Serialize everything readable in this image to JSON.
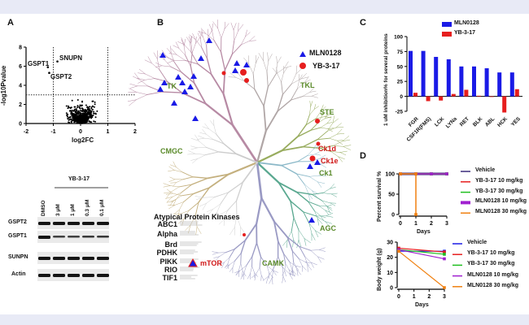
{
  "panels": {
    "a": "A",
    "b": "B",
    "c": "C",
    "d": "D"
  },
  "colors": {
    "mln": "#1a1ae6",
    "yb": "#e61e1e",
    "family_label": "#5a8a2a",
    "highlight": "#d01818",
    "band": "#e8eaf6"
  },
  "chart_data": [
    {
      "type": "scatter",
      "panel": "A",
      "xlabel": "log2FC",
      "ylabel": "-log10Pvalue",
      "xlim": [
        -2,
        2
      ],
      "ylim": [
        0,
        8
      ],
      "xticks": [
        "-2",
        "-1",
        "0",
        "1",
        "2"
      ],
      "yticks": [
        "0",
        "2",
        "4",
        "6",
        "8"
      ],
      "thresholds": {
        "x": [
          -1,
          1
        ],
        "y": 3
      },
      "labeled_points": [
        {
          "name": "GSPT1",
          "x": -1.2,
          "y": 5.9
        },
        {
          "name": "GSPT2",
          "x": -1.15,
          "y": 5.3
        },
        {
          "name": "SNUPN",
          "x": -0.85,
          "y": 6.5
        }
      ]
    },
    {
      "type": "bar",
      "panel": "C",
      "ylabel": "1 uM inhibition% for several proteins",
      "ylim": [
        -25,
        100
      ],
      "yticks": [
        "-25",
        "0",
        "25",
        "50",
        "75",
        "100"
      ],
      "categories": [
        "FGR",
        "CSF1R(FMS)",
        "LCK",
        "LYNa",
        "RET",
        "BLK",
        "ABL",
        "HCK",
        "YES"
      ],
      "series": [
        {
          "name": "MLN0128",
          "color": "#1a1ae6",
          "values": [
            76,
            76,
            66,
            62,
            50,
            50,
            47,
            40,
            40
          ]
        },
        {
          "name": "YB-3-17",
          "color": "#e61e1e",
          "values": [
            6,
            -8,
            -7,
            4,
            11,
            1,
            -1,
            -27,
            12
          ]
        }
      ],
      "legend": "top-right"
    },
    {
      "type": "line",
      "panel": "D-top",
      "ylabel": "Percent survival %",
      "xlabel": "Days",
      "xlim": [
        0,
        3
      ],
      "ylim": [
        0,
        100
      ],
      "xticks": [
        "0",
        "1",
        "2",
        "3"
      ],
      "yticks": [
        "0",
        "50",
        "100"
      ],
      "series": [
        {
          "name": "Vehicle",
          "color": "#3a2a7a",
          "x": [
            0,
            1,
            2,
            3
          ],
          "y": [
            100,
            100,
            100,
            100
          ]
        },
        {
          "name": "YB-3-17 10 mg/kg",
          "color": "#e61e1e",
          "x": [
            0,
            1,
            2,
            3
          ],
          "y": [
            100,
            100,
            100,
            100
          ]
        },
        {
          "name": "YB-3-17 30 mg/kg",
          "color": "#1fbf1f",
          "x": [
            0,
            1,
            2,
            3
          ],
          "y": [
            100,
            100,
            100,
            100
          ]
        },
        {
          "name": "MLN0128 10 mg/kg",
          "color": "#a020d0",
          "x": [
            0,
            1,
            2,
            3
          ],
          "y": [
            100,
            100,
            100,
            100
          ]
        },
        {
          "name": "MLN0128 30 mg/kg",
          "color": "#f08010",
          "x": [
            0,
            1,
            1
          ],
          "y": [
            100,
            100,
            0
          ]
        }
      ],
      "legend": "right"
    },
    {
      "type": "line",
      "panel": "D-bottom",
      "ylabel": "Body weight (g)",
      "xlabel": "Days",
      "xlim": [
        0,
        3
      ],
      "ylim": [
        0,
        30
      ],
      "xticks": [
        "0",
        "1",
        "2",
        "3"
      ],
      "yticks": [
        "0",
        "10",
        "20",
        "30"
      ],
      "series": [
        {
          "name": "Vehicle",
          "color": "#1a1ae6",
          "x": [
            0,
            3
          ],
          "y": [
            24,
            24
          ]
        },
        {
          "name": "YB-3-17 10 mg/kg",
          "color": "#e61e1e",
          "x": [
            0,
            3
          ],
          "y": [
            26,
            23.5
          ]
        },
        {
          "name": "YB-3-17 30 mg/kg",
          "color": "#1fbf1f",
          "x": [
            0,
            3
          ],
          "y": [
            25,
            22
          ]
        },
        {
          "name": "MLN0128 10 mg/kg",
          "color": "#a020d0",
          "x": [
            0,
            3
          ],
          "y": [
            25,
            19
          ]
        },
        {
          "name": "MLN0128 30 mg/kg",
          "color": "#f08010",
          "x": [
            0,
            3
          ],
          "y": [
            24,
            0
          ]
        }
      ],
      "legend": "right"
    }
  ],
  "blot": {
    "treatment": "YB-3-17",
    "lanes": [
      "DMSO",
      "3 μM",
      "1 μM",
      "0.3 μM",
      "0.1 μM"
    ],
    "rows": [
      "GSPT2",
      "GSPT1",
      "SUNPN",
      "Actin"
    ],
    "intensity": {
      "GSPT2": [
        1,
        1,
        1,
        1,
        1
      ],
      "GSPT1": [
        1,
        0.5,
        0.5,
        0.6,
        0.6
      ],
      "SUNPN": [
        1,
        1,
        1,
        1,
        1
      ],
      "Actin": [
        1,
        1,
        1,
        1,
        1
      ]
    }
  },
  "kinome": {
    "legend": [
      {
        "label": "MLN0128",
        "marker": "triangle"
      },
      {
        "label": "YB-3-17",
        "marker": "circle"
      }
    ],
    "families": [
      "TK",
      "TKL",
      "STE",
      "CMGC",
      "Ck1",
      "AGC",
      "CAMK"
    ],
    "highlighted": [
      "Ck1d",
      "Ck1e"
    ],
    "atypical_title": "Atypical Protein Kinases",
    "atypical": [
      "ABC1",
      "Alpha",
      "Brd",
      "PDHK",
      "PIKK",
      "RIO",
      "TIF1"
    ],
    "atypical_hit": "mTOR"
  }
}
